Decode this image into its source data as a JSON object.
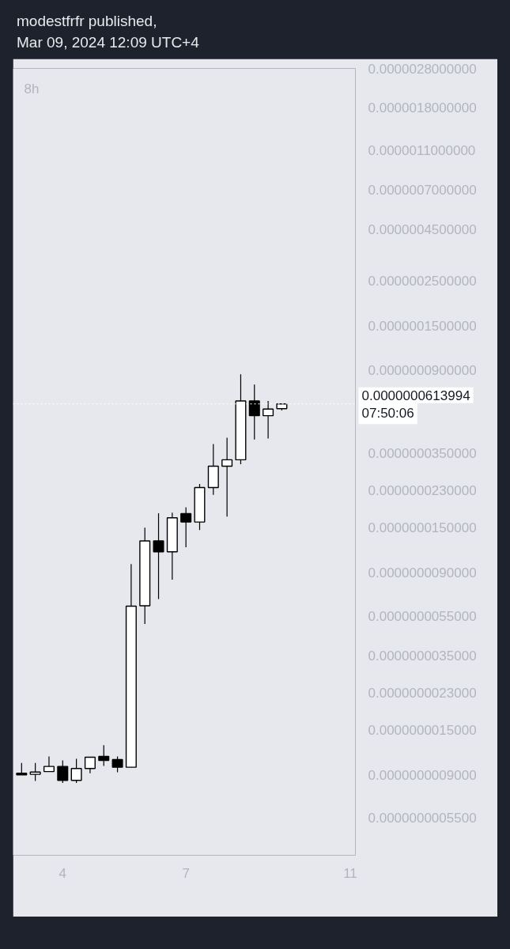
{
  "chart_data": {
    "type": "candlestick",
    "title": "8h",
    "log": true,
    "annotations": [
      "modestfrfr published,",
      "Mar 09, 2024 12:09 UTC+4",
      "07:50:06"
    ],
    "x": [
      "2024-03-03T00:00",
      "2024-03-03T08:00",
      "2024-03-03T16:00",
      "2024-03-04T00:00",
      "2024-03-04T08:00",
      "2024-03-04T16:00",
      "2024-03-05T00:00",
      "2024-03-05T08:00",
      "2024-03-05T16:00",
      "2024-03-06T00:00",
      "2024-03-06T08:00",
      "2024-03-06T16:00",
      "2024-03-07T00:00",
      "2024-03-07T08:00",
      "2024-03-07T16:00",
      "2024-03-08T00:00",
      "2024-03-08T08:00",
      "2024-03-08T16:00",
      "2024-03-09T00:00",
      "2024-03-09T08:00"
    ],
    "ohlc": [
      [
        9.16e-10,
        1.03e-09,
        9e-10,
        9e-10
      ],
      [
        9.05e-10,
        1.03e-09,
        8.4e-10,
        9.29e-10
      ],
      [
        9.34e-10,
        1.11e-09,
        9.3e-10,
        9.9e-10
      ],
      [
        9.9e-10,
        1.06e-09,
        8.21e-10,
        8.45e-10
      ],
      [
        8.45e-10,
        1.08e-09,
        8.21e-10,
        9.67e-10
      ],
      [
        9.67e-10,
        1.1e-09,
        9.16e-10,
        1.1e-09
      ],
      [
        1.11e-09,
        1.26e-09,
        9.96e-10,
        1.06e-09
      ],
      [
        1.07e-09,
        1.11e-09,
        9.26e-10,
        9.81e-10
      ],
      [
        9.81e-10,
        9.92e-09,
        9.8e-10,
        6.14e-09
      ],
      [
        6.17e-09,
        1.5e-08,
        5.01e-09,
        1.29e-08
      ],
      [
        1.29e-08,
        1.77e-08,
        6.65e-09,
        1.14e-08
      ],
      [
        1.14e-08,
        1.78e-08,
        8.3e-09,
        1.68e-08
      ],
      [
        1.76e-08,
        1.89e-08,
        1.2e-08,
        1.6e-08
      ],
      [
        1.6e-08,
        2.47e-08,
        1.46e-08,
        2.37e-08
      ],
      [
        2.37e-08,
        3.89e-08,
        2.18e-08,
        3.02e-08
      ],
      [
        3.02e-08,
        4.18e-08,
        1.7e-08,
        3.25e-08
      ],
      [
        3.25e-08,
        8.6e-08,
        3.09e-08,
        6.35e-08
      ],
      [
        6.35e-08,
        7.66e-08,
        4.09e-08,
        5.37e-08
      ],
      [
        5.37e-08,
        6.35e-08,
        4.14e-08,
        5.79e-08
      ],
      [
        5.82e-08,
        6.14e-08,
        5.7e-08,
        6.13994e-08
      ]
    ],
    "color": "#000000",
    "colors": [
      "#000000",
      "#ffffff",
      "#ffffff",
      "#000000",
      "#ffffff",
      "#ffffff",
      "#000000",
      "#000000",
      "#ffffff",
      "#ffffff",
      "#000000",
      "#ffffff",
      "#000000",
      "#ffffff",
      "#ffffff",
      "#ffffff",
      "#ffffff",
      "#000000",
      "#ffffff",
      "#ffffff"
    ],
    "xlim": [
      "2024-03-02T19:00",
      "2024-03-11T03:00"
    ],
    "xticks": [
      {
        "value": "2024-03-04T00:00",
        "label": "4"
      },
      {
        "value": "2024-03-07T00:00",
        "label": "7"
      },
      {
        "value": "2024-03-11T00:00",
        "label": "11"
      }
    ],
    "ylim": [
      3.6e-10,
      2.8e-06
    ],
    "yticks": [
      {
        "value": 2.8e-06,
        "label": "0.0000028000000"
      },
      {
        "value": 1.8e-06,
        "label": "0.0000018000000"
      },
      {
        "value": 1.1e-06,
        "label": "0.0000011000000"
      },
      {
        "value": 7e-07,
        "label": "0.0000007000000"
      },
      {
        "value": 4.5e-07,
        "label": "0.0000004500000"
      },
      {
        "value": 2.5e-07,
        "label": "0.0000002500000"
      },
      {
        "value": 1.5e-07,
        "label": "0.0000001500000"
      },
      {
        "value": 9e-08,
        "label": "0.0000000900000"
      },
      {
        "value": 3.5e-08,
        "label": "0.0000000350000"
      },
      {
        "value": 2.3e-08,
        "label": "0.0000000230000"
      },
      {
        "value": 1.5e-08,
        "label": "0.0000000150000"
      },
      {
        "value": 9e-09,
        "label": "0.0000000090000"
      },
      {
        "value": 5.5e-09,
        "label": "0.0000000055000"
      },
      {
        "value": 3.5e-09,
        "label": "0.0000000035000"
      },
      {
        "value": 2.3e-09,
        "label": "0.0000000023000"
      },
      {
        "value": 1.5e-09,
        "label": "0.0000000015000"
      },
      {
        "value": 9e-10,
        "label": "0.0000000009000"
      },
      {
        "value": 5.5e-10,
        "label": "0.0000000005500"
      }
    ],
    "ref_lines": [
      {
        "axis": "y",
        "value": 6.13994e-08,
        "label": "0.0000000613994",
        "color": "#ffffff",
        "line_style": "dotted"
      }
    ]
  }
}
